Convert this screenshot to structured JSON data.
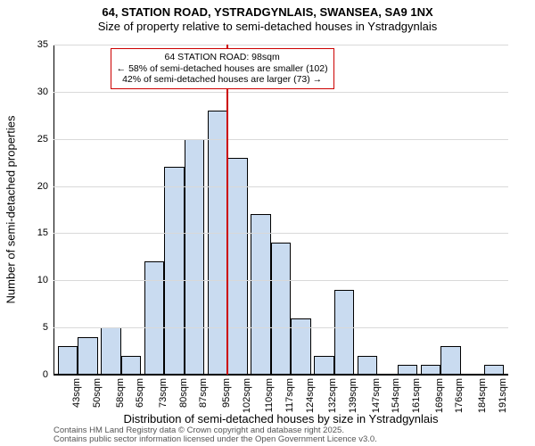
{
  "title": {
    "line1": "64, STATION ROAD, YSTRADGYNLAIS, SWANSEA, SA9 1NX",
    "line2": "Size of property relative to semi-detached houses in Ystradgynlais"
  },
  "y_axis": {
    "title": "Number of semi-detached properties",
    "min": 0,
    "max": 35,
    "tick_step": 5,
    "ticks": [
      0,
      5,
      10,
      15,
      20,
      25,
      30,
      35
    ]
  },
  "x_axis": {
    "title": "Distribution of semi-detached houses by size in Ystradgynlais",
    "tick_suffix": "sqm",
    "tick_values": [
      43,
      50,
      58,
      65,
      73,
      80,
      87,
      95,
      102,
      110,
      117,
      124,
      132,
      139,
      147,
      154,
      161,
      169,
      176,
      184,
      191
    ]
  },
  "histogram": {
    "type": "histogram",
    "bar_fill": "#c9dbf0",
    "bar_stroke": "#000000",
    "bar_stroke_width": 0.5,
    "values": [
      3,
      4,
      5,
      2,
      12,
      22,
      25,
      28,
      23,
      17,
      14,
      6,
      2,
      9,
      2,
      0,
      1,
      1,
      3,
      0,
      1
    ]
  },
  "marker": {
    "label": "64 STATION ROAD: 98sqm",
    "sub1": "← 58% of semi-detached houses are smaller (102)",
    "sub2": "42% of semi-detached houses are larger (73) →",
    "position_value": 98,
    "line_color": "#cc0000",
    "box_border_color": "#cc0000"
  },
  "grid": {
    "color": "#d9d9d9"
  },
  "layout": {
    "x_range_min": 38,
    "x_range_max": 196
  },
  "footer": {
    "line1": "Contains HM Land Registry data © Crown copyright and database right 2025.",
    "line2": "Contains public sector information licensed under the Open Government Licence v3.0."
  }
}
